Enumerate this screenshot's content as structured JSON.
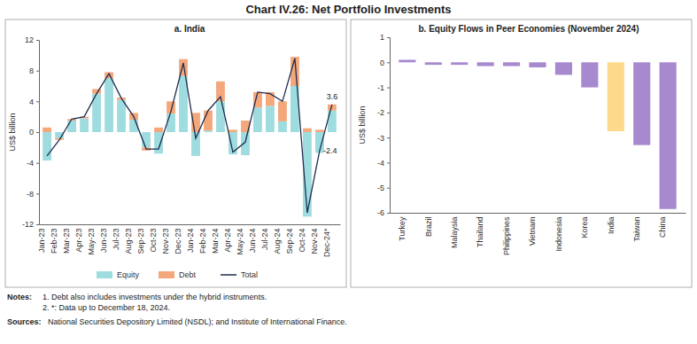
{
  "title": "Chart IV.26: Net Portfolio Investments",
  "notes": {
    "label": "Notes:",
    "items": [
      "1.  Debt also includes investments under the hybrid instruments.",
      "2.  *: Data up to December 18, 2024."
    ]
  },
  "sources": {
    "label": "Sources:",
    "text": "National Securities Depository Limited (NSDL); and Institute of International Finance."
  },
  "chart_data": [
    {
      "type": "bar",
      "subtitle": "a. India",
      "y_label": "US$ billion",
      "stacked": true,
      "legend": "bottom",
      "grid": false,
      "categories": [
        "Jan-23",
        "Feb-23",
        "Mar-23",
        "Apr-23",
        "May-23",
        "Jun-23",
        "Jul-23",
        "Aug-23",
        "Sep-23",
        "Oct-23",
        "Nov-23",
        "Dec-23",
        "Jan-24",
        "Feb-24",
        "Mar-24",
        "Apr-24",
        "May-24",
        "Jun-24",
        "Jul-24",
        "Aug-24",
        "Sep-24",
        "Oct-24",
        "Nov-24",
        "Dec-24*"
      ],
      "ylim": [
        -12,
        12
      ],
      "yticks": [
        -12,
        -8,
        -4,
        0,
        4,
        8,
        12
      ],
      "series": [
        {
          "name": "Equity",
          "type": "bar",
          "color": "#9fdcdf",
          "values": [
            -3.7,
            -0.8,
            1.5,
            1.8,
            5.0,
            7.0,
            4.2,
            1.6,
            -2.0,
            -2.8,
            2.4,
            7.3,
            -3.1,
            0.2,
            4.0,
            -2.9,
            -3.0,
            3.2,
            3.4,
            1.4,
            6.0,
            -11.0,
            -2.7,
            2.8
          ]
        },
        {
          "name": "Debt",
          "type": "bar",
          "color": "#f4a77a",
          "values": [
            0.6,
            -0.2,
            0.2,
            0.2,
            0.6,
            0.8,
            0.3,
            0.9,
            -0.4,
            0.6,
            1.6,
            2.2,
            2.5,
            2.6,
            2.6,
            0.3,
            1.5,
            2.0,
            1.8,
            2.6,
            3.8,
            0.5,
            0.3,
            0.8
          ]
        },
        {
          "name": "Total",
          "type": "line",
          "color": "#1e2d4f",
          "values": [
            -3.1,
            -1.0,
            1.7,
            2.0,
            5.0,
            7.6,
            4.4,
            2.0,
            -2.2,
            -2.2,
            2.7,
            9.0,
            -0.8,
            2.8,
            4.6,
            -2.6,
            -1.3,
            5.2,
            5.0,
            4.0,
            9.6,
            -10.5,
            -2.4,
            3.6
          ],
          "value_labels": [
            null,
            null,
            null,
            null,
            null,
            null,
            null,
            null,
            null,
            null,
            null,
            null,
            null,
            null,
            null,
            null,
            null,
            null,
            null,
            null,
            null,
            null,
            "-2.4",
            "3.6"
          ]
        }
      ]
    },
    {
      "type": "bar",
      "subtitle": "b. Equity Flows in Peer Economies (November 2024)",
      "y_label": "US$ billion",
      "grid": false,
      "categories": [
        "Turkey",
        "Brazil",
        "Malaysia",
        "Thailand",
        "Philippines",
        "Vietnam",
        "Indonesia",
        "Korea",
        "India",
        "Taiwan",
        "China"
      ],
      "values": [
        0.1,
        -0.1,
        -0.1,
        -0.15,
        -0.15,
        -0.2,
        -0.5,
        -1.0,
        -2.75,
        -3.3,
        -5.85
      ],
      "colors": [
        "#a789cf",
        "#a789cf",
        "#a789cf",
        "#a789cf",
        "#a789cf",
        "#a789cf",
        "#a789cf",
        "#a789cf",
        "#fdd98c",
        "#a789cf",
        "#a789cf"
      ],
      "ylim": [
        -6,
        1
      ],
      "yticks": [
        -6,
        -5,
        -4,
        -3,
        -2,
        -1,
        0,
        1
      ]
    }
  ]
}
